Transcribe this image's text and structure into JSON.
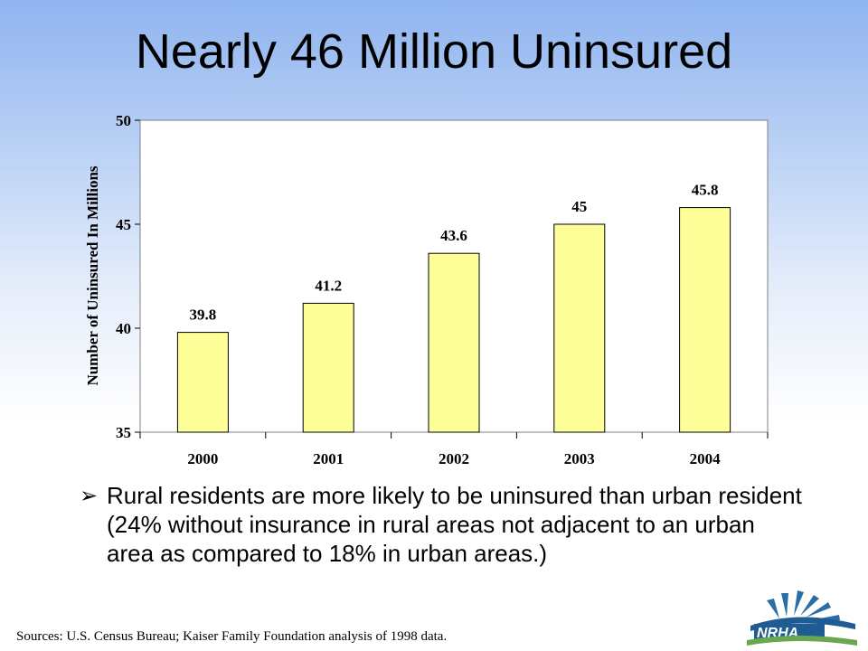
{
  "slide": {
    "title": "Nearly 46 Million Uninsured",
    "bullet_symbol": "➢",
    "bullet_text": "Rural residents are more likely to be uninsured than urban resident (24% without insurance in rural areas not adjacent to an urban area as compared to 18% in urban areas.)",
    "sources": "Sources: U.S. Census Bureau; Kaiser Family Foundation analysis of 1998 data.",
    "logo_text": "NRHA"
  },
  "chart_data": {
    "type": "bar",
    "categories": [
      "2000",
      "2001",
      "2002",
      "2003",
      "2004"
    ],
    "values": [
      39.8,
      41.2,
      43.6,
      45,
      45.8
    ],
    "data_labels": [
      "39.8",
      "41.2",
      "43.6",
      "45",
      "45.8"
    ],
    "xlabel": "",
    "ylabel": "Number of Uninsured In Millions",
    "ylim": [
      35,
      50
    ],
    "yticks": [
      35,
      40,
      45,
      50
    ],
    "grid": false,
    "legend": "none",
    "colors": {
      "bar_fill": "#ffff99",
      "bar_stroke": "#000000",
      "plot_bg": "#ffffff"
    }
  }
}
